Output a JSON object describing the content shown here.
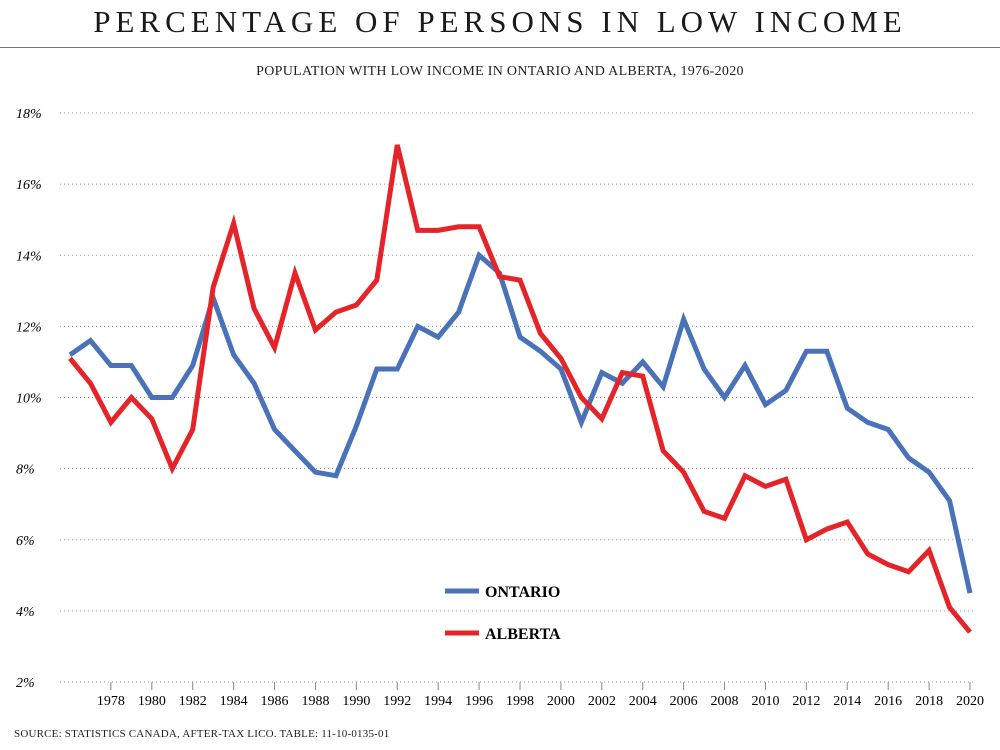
{
  "title": "PERCENTAGE OF PERSONS IN LOW INCOME",
  "source": "SOURCE: STATISTICS CANADA, AFTER-TAX LICO. TABLE: 11-10-0135-01",
  "chart_data": {
    "type": "line",
    "title": "POPULATION WITH LOW INCOME IN ONTARIO AND ALBERTA, 1976-2020",
    "xlabel": "",
    "ylabel": "",
    "x": [
      1976,
      1977,
      1978,
      1979,
      1980,
      1981,
      1982,
      1983,
      1984,
      1985,
      1986,
      1987,
      1988,
      1989,
      1990,
      1991,
      1992,
      1993,
      1994,
      1995,
      1996,
      1997,
      1998,
      1999,
      2000,
      2001,
      2002,
      2003,
      2004,
      2005,
      2006,
      2007,
      2008,
      2009,
      2010,
      2011,
      2012,
      2013,
      2014,
      2015,
      2016,
      2017,
      2018,
      2019,
      2020
    ],
    "xticks": [
      "1978",
      "1980",
      "1982",
      "1984",
      "1986",
      "1988",
      "1990",
      "1992",
      "1994",
      "1996",
      "1998",
      "2000",
      "2002",
      "2004",
      "2006",
      "2008",
      "2010",
      "2012",
      "2014",
      "2016",
      "2018",
      "2020"
    ],
    "yticks": [
      "2%",
      "4%",
      "6%",
      "8%",
      "10%",
      "12%",
      "14%",
      "16%",
      "18%"
    ],
    "ylim": [
      2,
      18
    ],
    "grid": "horizontal dotted",
    "legend_placement": "bottom-center",
    "series": [
      {
        "name": "ONTARIO",
        "color": "#4a72b8",
        "values": [
          11.2,
          11.6,
          10.9,
          10.9,
          10.0,
          10.0,
          10.9,
          12.8,
          11.2,
          10.4,
          9.1,
          8.5,
          7.9,
          7.8,
          9.2,
          10.8,
          10.8,
          12.0,
          11.7,
          12.4,
          14.0,
          13.5,
          11.7,
          11.3,
          10.8,
          9.3,
          10.7,
          10.4,
          11.0,
          10.3,
          12.2,
          10.8,
          10.0,
          10.9,
          9.8,
          10.2,
          11.3,
          11.3,
          9.7,
          9.3,
          9.1,
          8.3,
          7.9,
          7.1,
          4.5
        ]
      },
      {
        "name": "ALBERTA",
        "color": "#e5242a",
        "values": [
          11.1,
          10.4,
          9.3,
          10.0,
          9.4,
          8.0,
          9.1,
          13.1,
          14.9,
          12.5,
          11.4,
          13.5,
          11.9,
          12.4,
          12.6,
          13.3,
          17.1,
          14.7,
          14.7,
          14.8,
          14.8,
          13.4,
          13.3,
          11.8,
          11.1,
          10.0,
          9.4,
          10.7,
          10.6,
          8.5,
          7.9,
          6.8,
          6.6,
          7.8,
          7.5,
          7.7,
          6.0,
          6.3,
          6.5,
          5.6,
          5.3,
          5.1,
          5.7,
          4.1,
          3.4
        ]
      }
    ]
  }
}
